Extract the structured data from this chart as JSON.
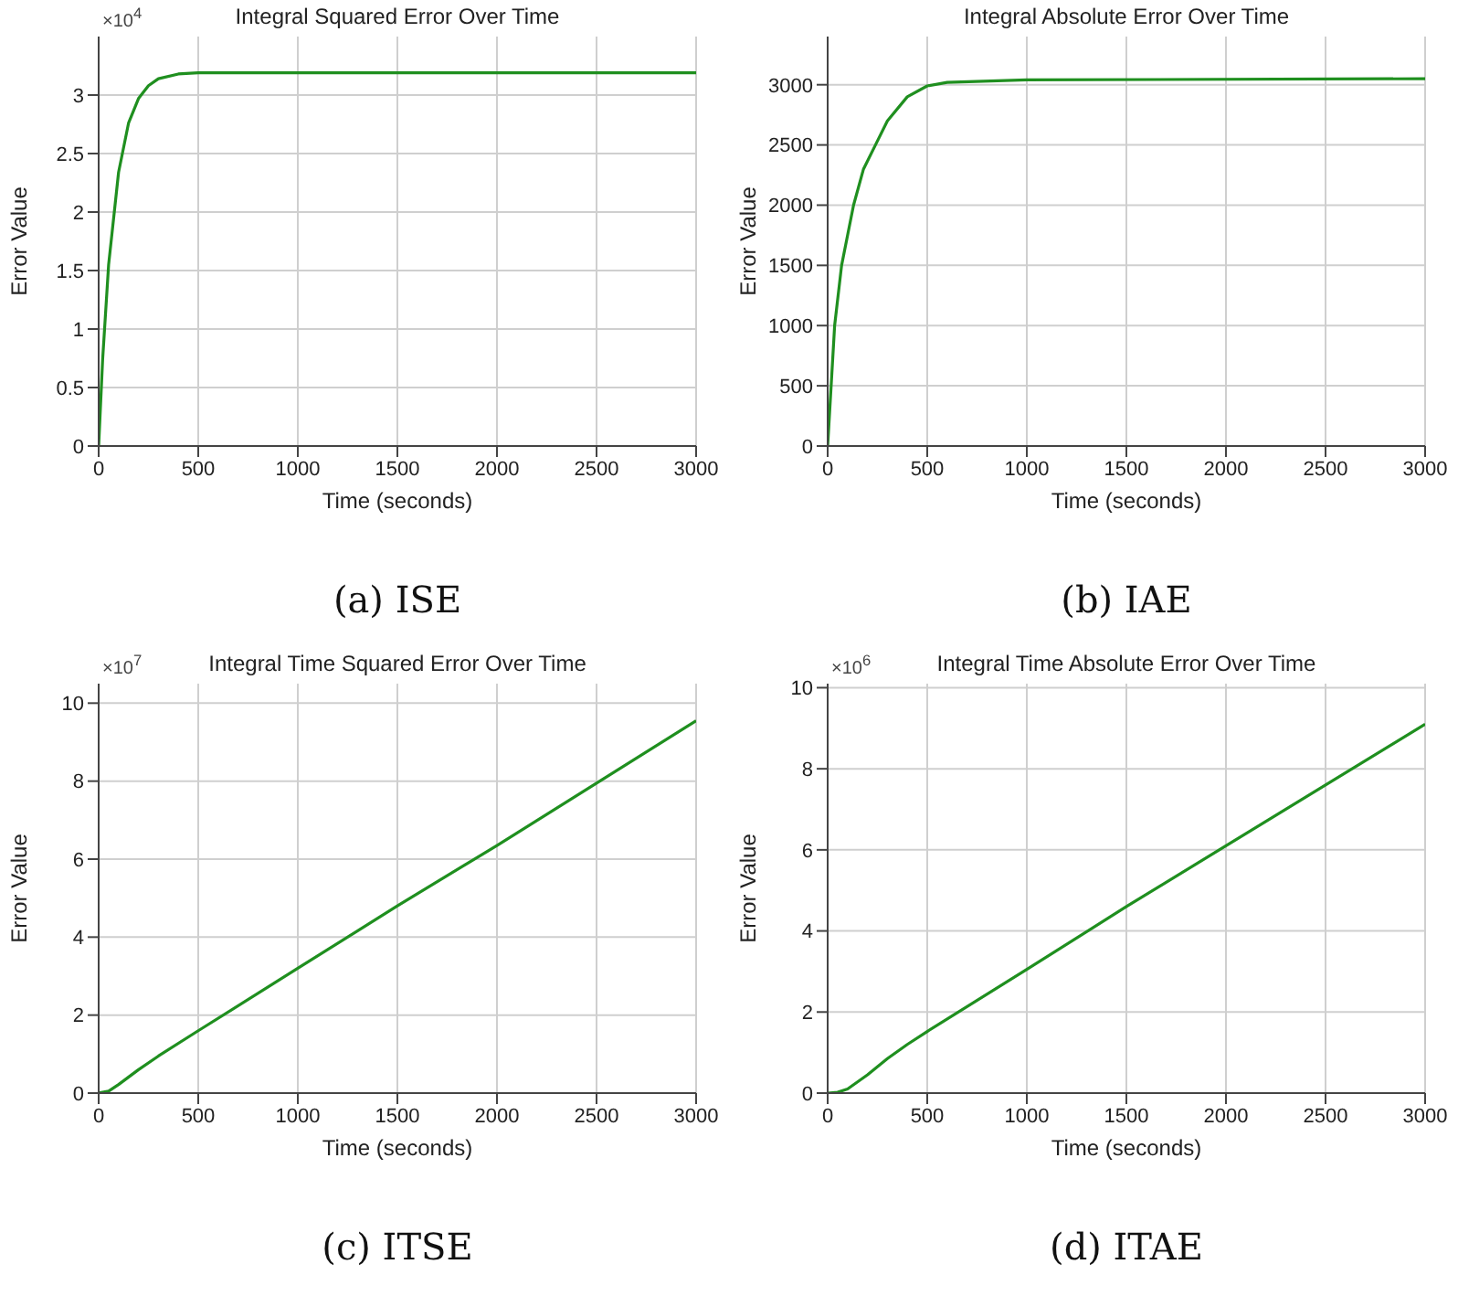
{
  "chart_data": [
    {
      "type": "line",
      "title": "Integral Squared Error Over Time",
      "subtitle": "(a) ISE",
      "xlabel": "Time (seconds)",
      "ylabel": "Error Value",
      "annotations": [
        "×10$^{4}$"
      ],
      "x": [
        0,
        20,
        50,
        100,
        150,
        200,
        250,
        300,
        400,
        500,
        1000,
        3000
      ],
      "series": [
        {
          "color": "#1f8f1f",
          "values": [
            0,
            0.74,
            1.55,
            2.34,
            2.76,
            2.97,
            3.08,
            3.14,
            3.18,
            3.19,
            3.19,
            3.19
          ]
        }
      ],
      "xlim": [
        0,
        3000
      ],
      "xticks": [
        0,
        500,
        1000,
        1500,
        2000,
        2500,
        3000
      ],
      "ylim": [
        0,
        3.5
      ],
      "yticks": [
        0,
        0.5,
        1,
        1.5,
        2,
        2.5,
        3
      ],
      "grid": true
    },
    {
      "type": "line",
      "title": "Integral Absolute Error Over Time",
      "subtitle": "(b) IAE",
      "xlabel": "Time (seconds)",
      "ylabel": "Error Value",
      "x": [
        0,
        35,
        70,
        130,
        180,
        240,
        300,
        400,
        500,
        600,
        1000,
        3000
      ],
      "series": [
        {
          "color": "#1f8f1f",
          "values": [
            0,
            1000,
            1500,
            2000,
            2300,
            2500,
            2700,
            2900,
            2990,
            3020,
            3040,
            3050
          ]
        }
      ],
      "xlim": [
        0,
        3000
      ],
      "xticks": [
        0,
        500,
        1000,
        1500,
        2000,
        2500,
        3000
      ],
      "ylim": [
        0,
        3400
      ],
      "yticks": [
        0,
        500,
        1000,
        1500,
        2000,
        2500,
        3000
      ],
      "grid": true
    },
    {
      "type": "line",
      "title": "Integral Time Squared Error Over Time",
      "subtitle": "(c) ITSE",
      "xlabel": "Time (seconds)",
      "ylabel": "Error Value",
      "annotations": [
        "×10$^{7}$"
      ],
      "x": [
        0,
        50,
        100,
        200,
        300,
        500,
        1000,
        1500,
        2000,
        2500,
        3000
      ],
      "series": [
        {
          "color": "#1f8f1f",
          "values": [
            0,
            0.05,
            0.22,
            0.6,
            0.95,
            1.6,
            3.2,
            4.8,
            6.35,
            7.95,
            9.55
          ]
        }
      ],
      "xlim": [
        0,
        3000
      ],
      "xticks": [
        0,
        500,
        1000,
        1500,
        2000,
        2500,
        3000
      ],
      "ylim": [
        0,
        10.5
      ],
      "yticks": [
        0,
        2,
        4,
        6,
        8,
        10
      ],
      "grid": true
    },
    {
      "type": "line",
      "title": "Integral Time Absolute Error Over Time",
      "subtitle": "(d) ITAE",
      "xlabel": "Time (seconds)",
      "ylabel": "Error Value",
      "annotations": [
        "×10$^{6}$"
      ],
      "x": [
        0,
        50,
        100,
        200,
        300,
        400,
        500,
        1000,
        1500,
        2000,
        2500,
        3000
      ],
      "series": [
        {
          "color": "#1f8f1f",
          "values": [
            0,
            0.02,
            0.1,
            0.45,
            0.85,
            1.2,
            1.52,
            3.05,
            4.6,
            6.1,
            7.6,
            9.1
          ]
        }
      ],
      "xlim": [
        0,
        3000
      ],
      "xticks": [
        0,
        500,
        1000,
        1500,
        2000,
        2500,
        3000
      ],
      "ylim": [
        0,
        10.1
      ],
      "yticks": [
        0,
        2,
        4,
        6,
        8,
        10
      ],
      "grid": true
    }
  ]
}
